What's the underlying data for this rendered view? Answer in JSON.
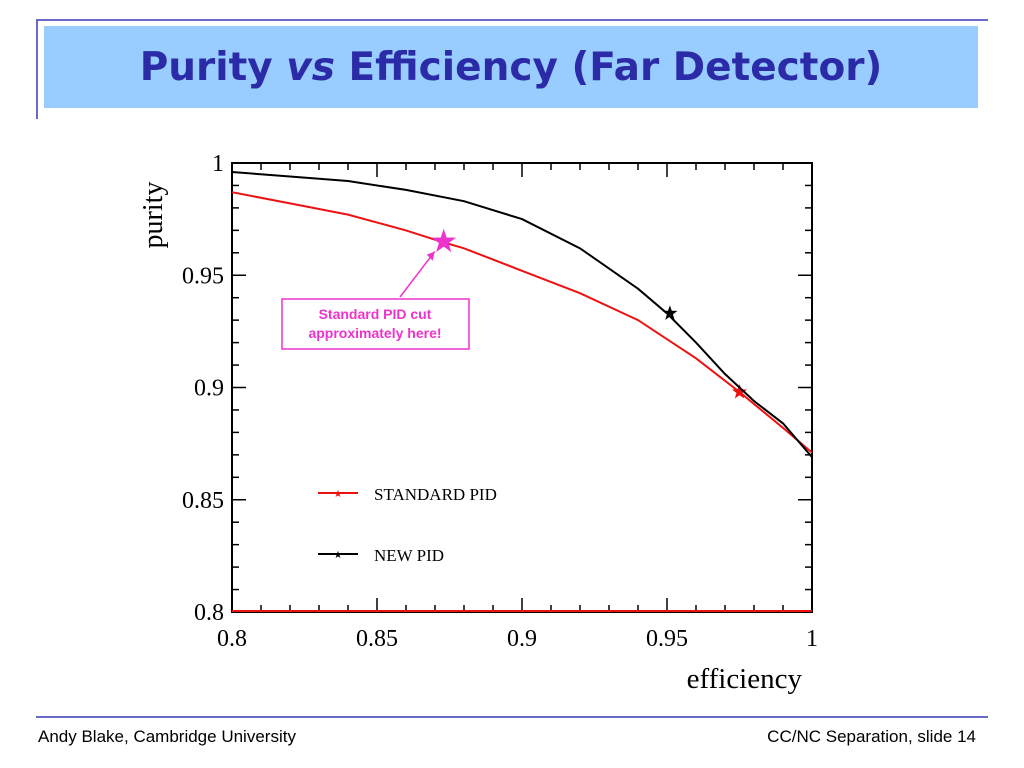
{
  "slide": {
    "title_main": "Purity ",
    "title_italic": "vs",
    "title_rest": " Efficiency (Far Detector)",
    "footer_left": "Andy Blake, Cambridge University",
    "footer_right": "CC/NC Separation, slide 14",
    "accent_color": "#2b2ba8",
    "title_bg_color": "#99ccff"
  },
  "chart_data": {
    "type": "line",
    "title": "",
    "xlabel": "efficiency",
    "ylabel": "purity",
    "xlim": [
      0.8,
      1.0
    ],
    "ylim": [
      0.8,
      1.0
    ],
    "x_ticks": [
      0.8,
      0.85,
      0.9,
      0.95,
      1
    ],
    "x_tick_labels": [
      "0.8",
      "0.85",
      "0.9",
      "0.95",
      "1"
    ],
    "y_ticks": [
      0.8,
      0.85,
      0.9,
      0.95,
      1
    ],
    "y_tick_labels": [
      "0.8",
      "0.85",
      "0.9",
      "0.95",
      "1"
    ],
    "grid": false,
    "legend_position": "center",
    "series": [
      {
        "name": "STANDARD PID",
        "color": "#ee1111",
        "x": [
          0.8,
          0.82,
          0.84,
          0.86,
          0.872,
          0.88,
          0.9,
          0.92,
          0.94,
          0.96,
          0.975,
          0.99,
          1.0
        ],
        "y": [
          0.987,
          0.982,
          0.977,
          0.97,
          0.965,
          0.962,
          0.952,
          0.942,
          0.93,
          0.913,
          0.898,
          0.882,
          0.871
        ],
        "marker": {
          "x": 0.975,
          "y": 0.898
        }
      },
      {
        "name": "NEW PID",
        "color": "#000000",
        "x": [
          0.8,
          0.82,
          0.84,
          0.86,
          0.88,
          0.9,
          0.92,
          0.94,
          0.95,
          0.96,
          0.97,
          0.98,
          0.99,
          1.0
        ],
        "y": [
          0.996,
          0.994,
          0.992,
          0.988,
          0.983,
          0.975,
          0.962,
          0.944,
          0.933,
          0.92,
          0.906,
          0.894,
          0.884,
          0.869
        ],
        "marker": {
          "x": 0.951,
          "y": 0.933
        }
      }
    ],
    "annotation": {
      "text_line1": "Standard PID cut",
      "text_line2": "approximately here!",
      "point": {
        "x": 0.873,
        "y": 0.965
      },
      "color": "#ee33cc"
    }
  }
}
